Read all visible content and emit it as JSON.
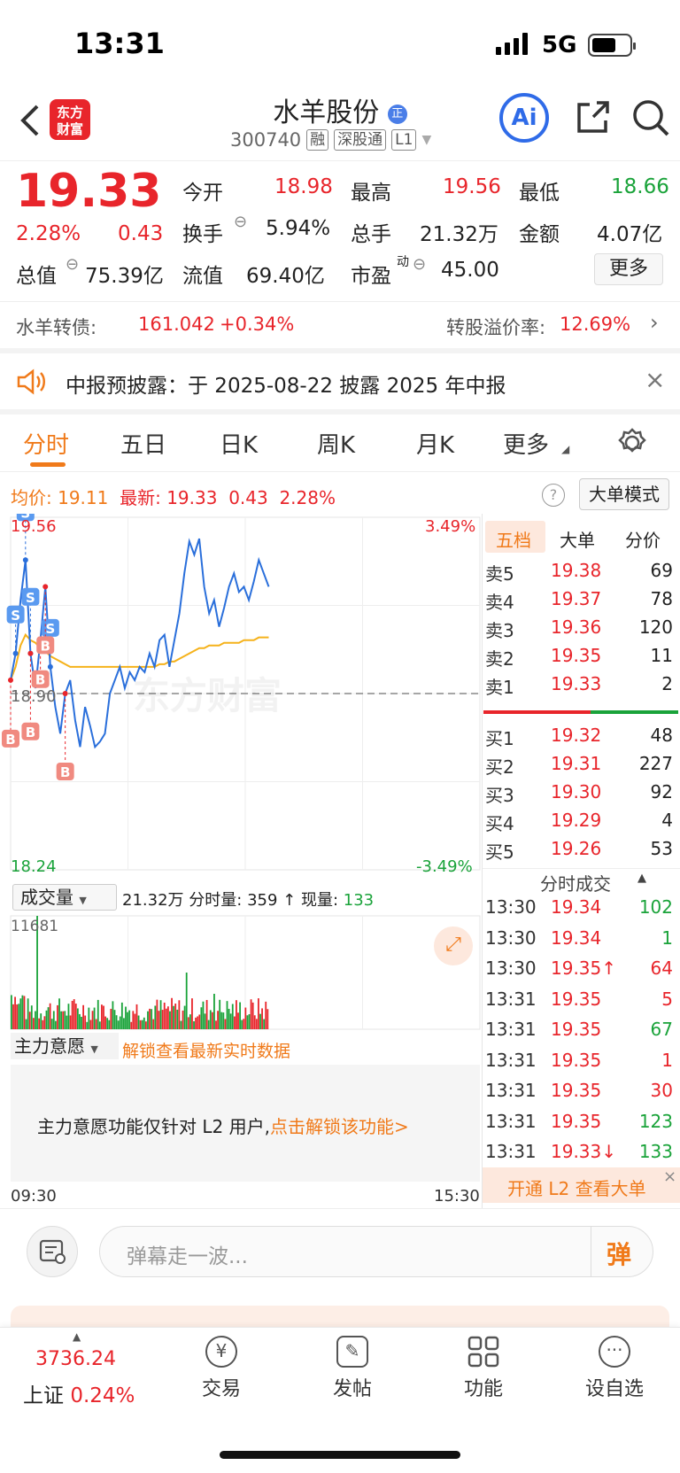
{
  "status": {
    "time": "13:31",
    "network": "5G"
  },
  "header": {
    "stock_name": "水羊股份",
    "code": "300740",
    "tags": [
      "融",
      "深股通",
      "L1"
    ],
    "ai_label": "Ai",
    "logo": "东方财富"
  },
  "quote": {
    "price": "19.33",
    "change_pct": "2.28%",
    "change": "0.43",
    "open_label": "今开",
    "open": "18.98",
    "high_label": "最高",
    "high": "19.56",
    "low_label": "最低",
    "low": "18.66",
    "turnover_label": "换手",
    "turnover": "5.94%",
    "volume_label": "总手",
    "volume": "21.32万",
    "amount_label": "金额",
    "amount": "4.07亿",
    "mktcap_label": "总值",
    "mktcap": "75.39亿",
    "float_label": "流值",
    "float": "69.40亿",
    "pe_label": "市盈",
    "pe_sup": "动",
    "pe": "45.00",
    "more": "更多"
  },
  "bond": {
    "name": "水羊转债:",
    "price": "161.042",
    "change": "+0.34%",
    "premium_label": "转股溢价率:",
    "premium": "12.69%"
  },
  "notice": {
    "text": "中报预披露：于 2025-08-22 披露 2025 年中报"
  },
  "tabs": [
    "分时",
    "五日",
    "日K",
    "周K",
    "月K",
    "更多"
  ],
  "avg_bar": {
    "avg_label": "均价:",
    "avg": "19.11",
    "latest_label": "最新:",
    "latest": "19.33",
    "chg": "0.43",
    "pct": "2.28%",
    "bigorder": "大单模式"
  },
  "chart_data": {
    "type": "line",
    "title": "",
    "y_max": "19.56",
    "y_min": "18.24",
    "pct_max": "3.49%",
    "pct_min": "-3.49%",
    "prev_close": "18.90",
    "x_start": "09:30",
    "x_end": "15:30",
    "watermark": "东方财富",
    "price": [
      18.95,
      19.05,
      19.25,
      19.4,
      19.05,
      18.92,
      19.1,
      19.3,
      19.0,
      18.85,
      18.75,
      18.9,
      18.95,
      18.8,
      18.7,
      18.85,
      18.78,
      18.7,
      18.72,
      18.75,
      18.9,
      18.95,
      19.0,
      18.92,
      18.98,
      18.95,
      19.0,
      18.98,
      19.05,
      19.0,
      19.1,
      19.12,
      19.0,
      19.1,
      19.2,
      19.35,
      19.47,
      19.42,
      19.48,
      19.3,
      19.2,
      19.25,
      19.15,
      19.22,
      19.3,
      19.35,
      19.28,
      19.3,
      19.25,
      19.32,
      19.4,
      19.35,
      19.3
    ],
    "avg": [
      18.95,
      19.0,
      19.08,
      19.12,
      19.1,
      19.09,
      19.07,
      19.06,
      19.04,
      19.03,
      19.02,
      19.01,
      19.0,
      19.0,
      19.0,
      19.0,
      19.0,
      19.0,
      19.0,
      19.0,
      19.0,
      19.0,
      19.0,
      19.0,
      19.0,
      19.0,
      19.0,
      19.0,
      19.0,
      19.0,
      19.01,
      19.01,
      19.02,
      19.02,
      19.03,
      19.04,
      19.05,
      19.06,
      19.07,
      19.07,
      19.08,
      19.08,
      19.08,
      19.09,
      19.09,
      19.09,
      19.09,
      19.1,
      19.1,
      19.1,
      19.11,
      19.11,
      19.11
    ],
    "markers": [
      {
        "t": "S",
        "i": 1
      },
      {
        "t": "S",
        "i": 3
      },
      {
        "t": "S",
        "i": 4
      },
      {
        "t": "S",
        "i": 8
      },
      {
        "t": "B",
        "i": 0
      },
      {
        "t": "B",
        "i": 4
      },
      {
        "t": "B",
        "i": 6
      },
      {
        "t": "B",
        "i": 7
      },
      {
        "t": "B",
        "i": 11
      }
    ]
  },
  "volume": {
    "label": "成交量",
    "total": "21.32万",
    "tick_label": "分时量:",
    "tick": "359",
    "now_label": "现量:",
    "now": "133",
    "max": "11681"
  },
  "mainforce": {
    "label": "主力意愿",
    "unlock": "解锁查看最新实时数据",
    "msg": "主力意愿功能仅针对 L2 用户,",
    "link": "点击解锁该功能>"
  },
  "depth": {
    "tabs": [
      "五档",
      "大单",
      "分价"
    ],
    "asks": [
      {
        "l": "卖5",
        "p": "19.38",
        "v": "69"
      },
      {
        "l": "卖4",
        "p": "19.37",
        "v": "78"
      },
      {
        "l": "卖3",
        "p": "19.36",
        "v": "120"
      },
      {
        "l": "卖2",
        "p": "19.35",
        "v": "11"
      },
      {
        "l": "卖1",
        "p": "19.33",
        "v": "2"
      }
    ],
    "bids": [
      {
        "l": "买1",
        "p": "19.32",
        "v": "48"
      },
      {
        "l": "买2",
        "p": "19.31",
        "v": "227"
      },
      {
        "l": "买3",
        "p": "19.30",
        "v": "92"
      },
      {
        "l": "买4",
        "p": "19.29",
        "v": "4"
      },
      {
        "l": "买5",
        "p": "19.26",
        "v": "53"
      }
    ],
    "trades_title": "分时成交",
    "trades": [
      {
        "t": "13:30",
        "p": "19.34",
        "v": "102",
        "c": "g"
      },
      {
        "t": "13:30",
        "p": "19.34",
        "v": "1",
        "c": "g"
      },
      {
        "t": "13:30",
        "p": "19.35↑",
        "v": "64",
        "c": "r"
      },
      {
        "t": "13:31",
        "p": "19.35",
        "v": "5",
        "c": "r"
      },
      {
        "t": "13:31",
        "p": "19.35",
        "v": "67",
        "c": "g"
      },
      {
        "t": "13:31",
        "p": "19.35",
        "v": "1",
        "c": "r"
      },
      {
        "t": "13:31",
        "p": "19.35",
        "v": "30",
        "c": "r"
      },
      {
        "t": "13:31",
        "p": "19.35",
        "v": "123",
        "c": "g"
      },
      {
        "t": "13:31",
        "p": "19.33↓",
        "v": "133",
        "c": "g"
      }
    ],
    "l2": "开通 L2 查看大单"
  },
  "comment": {
    "placeholder": "弹幕走一波...",
    "btn": "弹"
  },
  "nav": {
    "index_value": "3736.24",
    "index_name": "上证",
    "index_pct": "0.24%",
    "items": [
      "交易",
      "发帖",
      "功能",
      "设自选"
    ]
  },
  "colors": {
    "up": "#e8252b",
    "down": "#1aa33a",
    "accent": "#f07a1a"
  }
}
